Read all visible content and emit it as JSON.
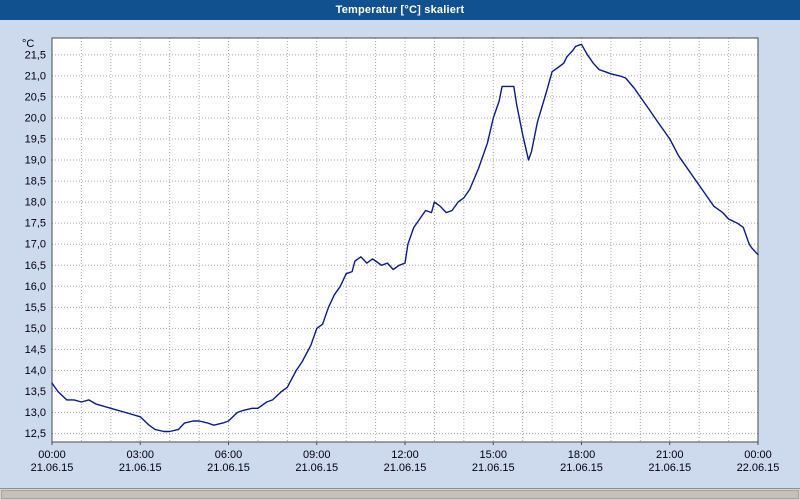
{
  "window": {
    "title": "Temperatur [°C] skaliert"
  },
  "colors": {
    "titlebar_bg": "#11518f",
    "titlebar_text": "#ffffff",
    "page_bg": "#cdd9ec",
    "plot_bg": "#ffffff",
    "grid": "#a8a8a8",
    "border": "#4a4a4a",
    "line": "#0a1a8f",
    "label": "#000011"
  },
  "chart_data": {
    "type": "line",
    "title": "Temperatur [°C] skaliert",
    "ylabel": "°C",
    "xlabel": "",
    "grid": true,
    "legend": false,
    "decimal_separator": ",",
    "ylim": [
      12.3,
      21.9
    ],
    "yticks_start": 12.5,
    "yticks_end": 21.5,
    "ystep": 0.5,
    "xlim": [
      0,
      24
    ],
    "x_grid_step": 1,
    "xticks": [
      {
        "hour": 0,
        "time": "00:00",
        "date": "21.06.15"
      },
      {
        "hour": 3,
        "time": "03:00",
        "date": "21.06.15"
      },
      {
        "hour": 6,
        "time": "06:00",
        "date": "21.06.15"
      },
      {
        "hour": 9,
        "time": "09:00",
        "date": "21.06.15"
      },
      {
        "hour": 12,
        "time": "12:00",
        "date": "21.06.15"
      },
      {
        "hour": 15,
        "time": "15:00",
        "date": "21.06.15"
      },
      {
        "hour": 18,
        "time": "18:00",
        "date": "21.06.15"
      },
      {
        "hour": 21,
        "time": "21:00",
        "date": "21.06.15"
      },
      {
        "hour": 24,
        "time": "00:00",
        "date": "22.06.15"
      }
    ],
    "series": [
      {
        "name": "Temperatur",
        "color": "#0a1a8f",
        "points": [
          [
            0,
            13.7
          ],
          [
            0.2,
            13.5
          ],
          [
            0.5,
            13.3
          ],
          [
            0.75,
            13.3
          ],
          [
            1,
            13.25
          ],
          [
            1.25,
            13.3
          ],
          [
            1.5,
            13.2
          ],
          [
            2,
            13.1
          ],
          [
            2.5,
            13.0
          ],
          [
            3,
            12.9
          ],
          [
            3.3,
            12.7
          ],
          [
            3.5,
            12.6
          ],
          [
            3.8,
            12.55
          ],
          [
            4,
            12.55
          ],
          [
            4.3,
            12.6
          ],
          [
            4.5,
            12.75
          ],
          [
            4.8,
            12.8
          ],
          [
            5,
            12.8
          ],
          [
            5.3,
            12.75
          ],
          [
            5.5,
            12.7
          ],
          [
            5.8,
            12.75
          ],
          [
            6,
            12.8
          ],
          [
            6.3,
            13.0
          ],
          [
            6.5,
            13.05
          ],
          [
            6.8,
            13.1
          ],
          [
            7,
            13.1
          ],
          [
            7.3,
            13.25
          ],
          [
            7.5,
            13.3
          ],
          [
            7.8,
            13.5
          ],
          [
            8,
            13.6
          ],
          [
            8.3,
            14.0
          ],
          [
            8.5,
            14.2
          ],
          [
            8.8,
            14.6
          ],
          [
            9,
            15.0
          ],
          [
            9.2,
            15.1
          ],
          [
            9.4,
            15.5
          ],
          [
            9.6,
            15.8
          ],
          [
            9.8,
            16.0
          ],
          [
            10,
            16.3
          ],
          [
            10.2,
            16.35
          ],
          [
            10.3,
            16.6
          ],
          [
            10.5,
            16.7
          ],
          [
            10.7,
            16.55
          ],
          [
            10.9,
            16.65
          ],
          [
            11,
            16.6
          ],
          [
            11.2,
            16.5
          ],
          [
            11.4,
            16.55
          ],
          [
            11.6,
            16.4
          ],
          [
            11.8,
            16.5
          ],
          [
            12,
            16.55
          ],
          [
            12.1,
            17.0
          ],
          [
            12.3,
            17.4
          ],
          [
            12.5,
            17.6
          ],
          [
            12.7,
            17.8
          ],
          [
            12.9,
            17.75
          ],
          [
            13,
            18.0
          ],
          [
            13.2,
            17.9
          ],
          [
            13.4,
            17.75
          ],
          [
            13.6,
            17.8
          ],
          [
            13.8,
            18.0
          ],
          [
            14,
            18.1
          ],
          [
            14.2,
            18.3
          ],
          [
            14.5,
            18.8
          ],
          [
            14.8,
            19.4
          ],
          [
            15,
            20.0
          ],
          [
            15.2,
            20.4
          ],
          [
            15.3,
            20.75
          ],
          [
            15.5,
            20.75
          ],
          [
            15.7,
            20.75
          ],
          [
            15.8,
            20.3
          ],
          [
            16,
            19.6
          ],
          [
            16.2,
            19.0
          ],
          [
            16.3,
            19.2
          ],
          [
            16.5,
            19.9
          ],
          [
            16.8,
            20.6
          ],
          [
            17,
            21.1
          ],
          [
            17.2,
            21.2
          ],
          [
            17.4,
            21.3
          ],
          [
            17.5,
            21.45
          ],
          [
            17.7,
            21.6
          ],
          [
            17.8,
            21.7
          ],
          [
            18,
            21.75
          ],
          [
            18.2,
            21.5
          ],
          [
            18.4,
            21.3
          ],
          [
            18.6,
            21.15
          ],
          [
            18.8,
            21.1
          ],
          [
            19,
            21.05
          ],
          [
            19.3,
            21.0
          ],
          [
            19.5,
            20.95
          ],
          [
            19.8,
            20.7
          ],
          [
            20,
            20.5
          ],
          [
            20.3,
            20.2
          ],
          [
            20.5,
            20.0
          ],
          [
            20.8,
            19.7
          ],
          [
            21,
            19.5
          ],
          [
            21.3,
            19.1
          ],
          [
            21.5,
            18.9
          ],
          [
            21.8,
            18.6
          ],
          [
            22,
            18.4
          ],
          [
            22.3,
            18.1
          ],
          [
            22.5,
            17.9
          ],
          [
            22.8,
            17.75
          ],
          [
            23,
            17.6
          ],
          [
            23.3,
            17.5
          ],
          [
            23.5,
            17.4
          ],
          [
            23.7,
            17.0
          ],
          [
            23.8,
            16.9
          ],
          [
            24,
            16.75
          ]
        ]
      }
    ]
  }
}
